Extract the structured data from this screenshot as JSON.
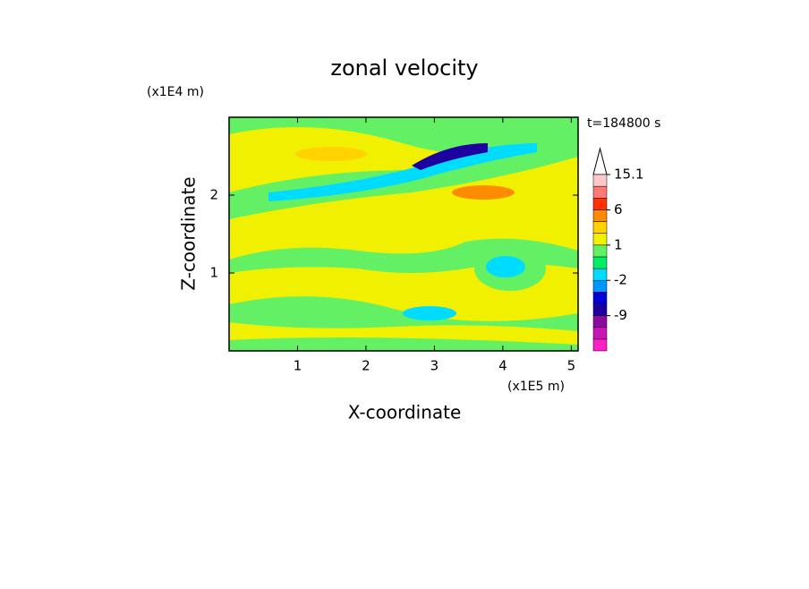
{
  "chart_data": {
    "type": "contour",
    "title": "zonal velocity",
    "xlabel": "X-coordinate",
    "ylabel": "Z-coordinate",
    "x_unit": "(x1E5 m)",
    "y_unit": "(x1E4 m)",
    "annotation": "t=184800 s",
    "xlim": [
      0,
      5.1
    ],
    "xticks": [
      1,
      2,
      3,
      4,
      5
    ],
    "ylim": [
      0,
      3
    ],
    "yticks": [
      1,
      2
    ],
    "colorbar": {
      "levels": [
        -18,
        -15,
        -12,
        -9,
        -6,
        -3,
        -2,
        -1,
        0,
        1,
        2,
        3,
        6,
        9,
        12,
        15.1
      ],
      "colors": [
        "#ff1ec8",
        "#c814b4",
        "#8c0aa0",
        "#1e00a0",
        "#0000dc",
        "#0096ff",
        "#00dcff",
        "#00f064",
        "#64f064",
        "#f0f000",
        "#ffd200",
        "#ff8c00",
        "#ff3200",
        "#ff7878",
        "#ffc8c8"
      ],
      "ticks": [
        15.1,
        6,
        1,
        -2,
        -9
      ]
    }
  }
}
